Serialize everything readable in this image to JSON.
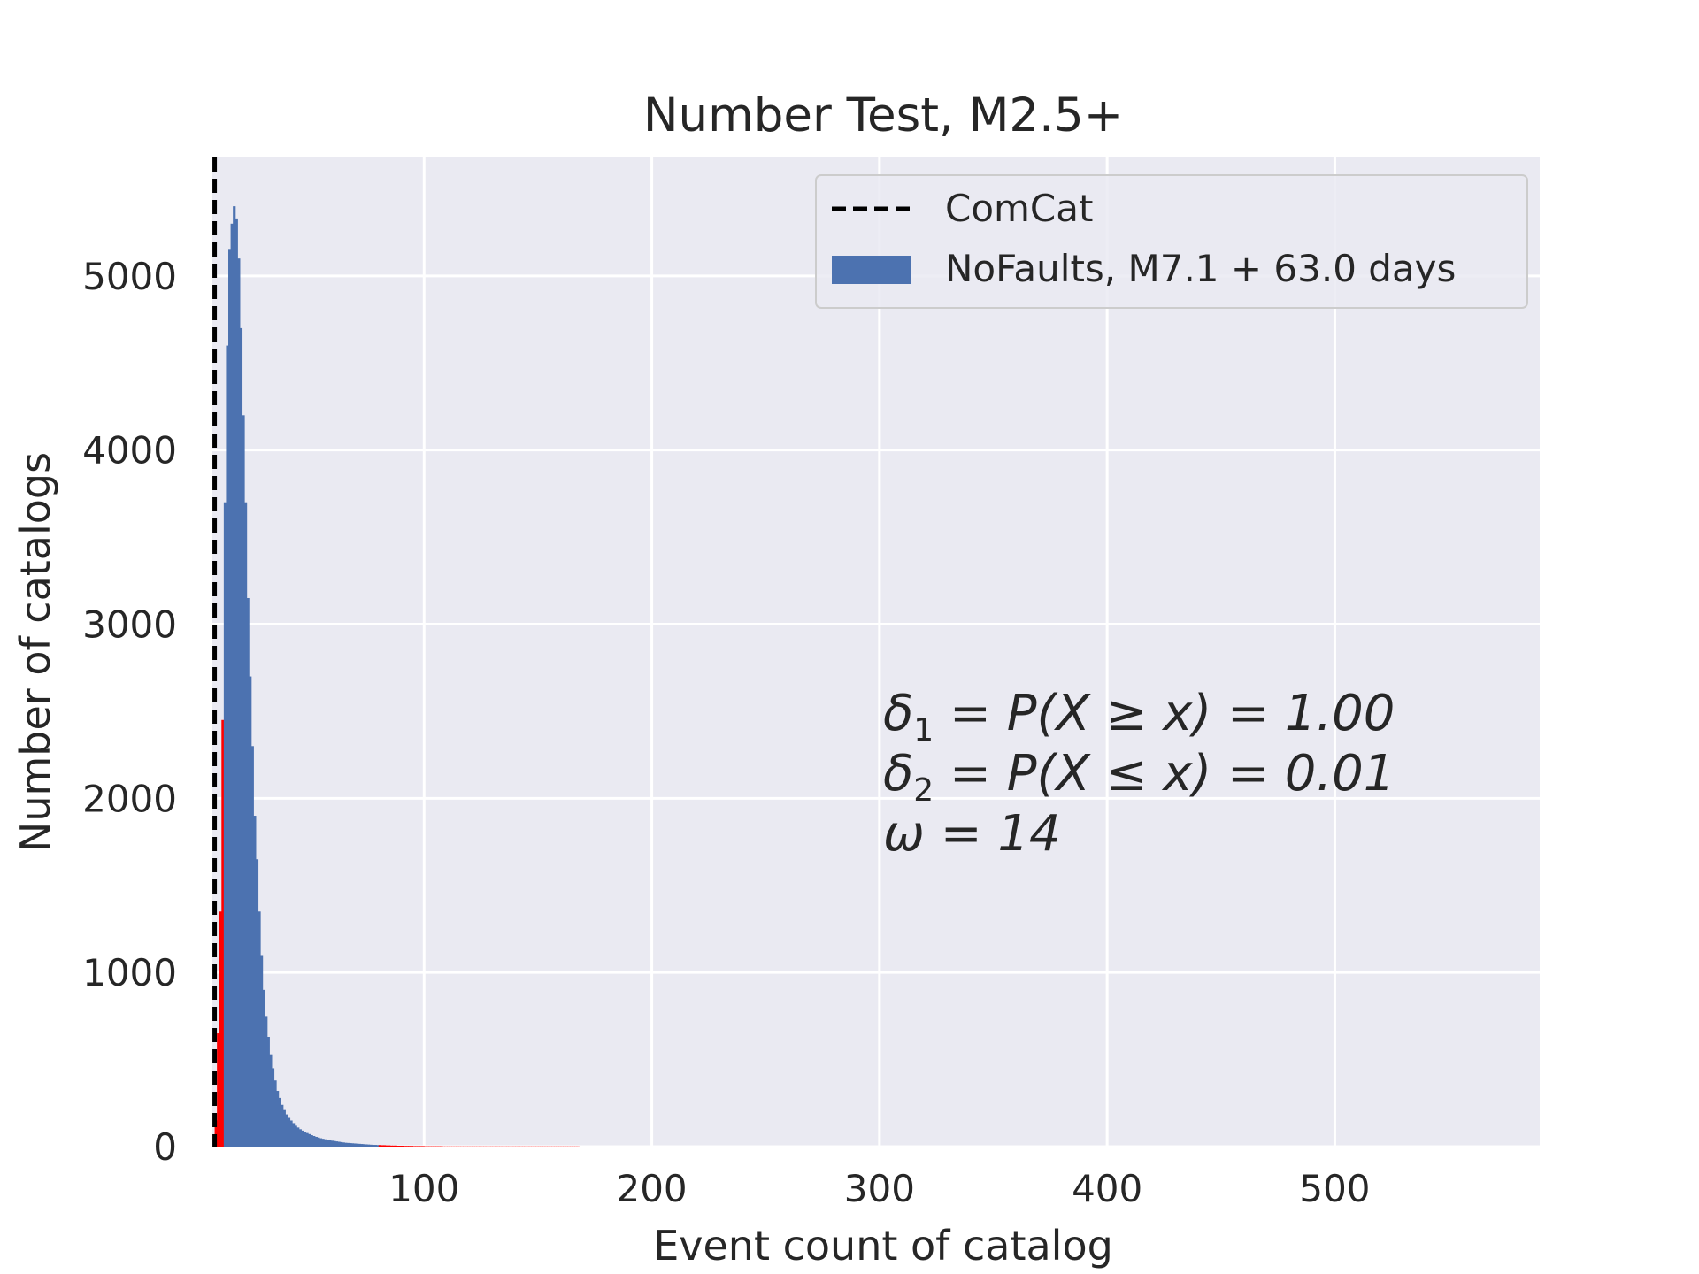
{
  "chart_data": {
    "type": "bar",
    "title": "Number Test, M2.5+",
    "xlabel": "Event count of catalog",
    "ylabel": "Number of catalogs",
    "xlim": [
      7,
      590
    ],
    "ylim": [
      0,
      5680
    ],
    "x_ticks": [
      {
        "value": 100,
        "label": "100"
      },
      {
        "value": 200,
        "label": "200"
      },
      {
        "value": 300,
        "label": "300"
      },
      {
        "value": 400,
        "label": "400"
      },
      {
        "value": 500,
        "label": "500"
      }
    ],
    "y_ticks": [
      {
        "value": 0,
        "label": "0"
      },
      {
        "value": 1000,
        "label": "1000"
      },
      {
        "value": 2000,
        "label": "2000"
      },
      {
        "value": 3000,
        "label": "3000"
      },
      {
        "value": 4000,
        "label": "4000"
      },
      {
        "value": 5000,
        "label": "5000"
      }
    ],
    "grid": true,
    "legend_position": "top-right",
    "legend": [
      {
        "label": "ComCat",
        "kind": "dashed-line",
        "color": "#000000"
      },
      {
        "label": "NoFaults, M7.1 + 63.0 days",
        "kind": "patch",
        "color": "#4C72B0"
      }
    ],
    "observed_value": 8,
    "histogram": {
      "bin_start": 8,
      "bin_width": 1,
      "counts": [
        150,
        650,
        1350,
        2450,
        3700,
        4600,
        5150,
        5300,
        5400,
        5330,
        5100,
        4700,
        4200,
        3700,
        3150,
        2700,
        2300,
        1900,
        1650,
        1350,
        1100,
        900,
        750,
        630,
        530,
        450,
        380,
        320,
        280,
        240,
        210,
        185,
        165,
        150,
        135,
        120,
        110,
        100,
        92,
        85,
        78,
        72,
        66,
        61,
        56,
        52,
        48,
        45,
        42,
        39,
        36,
        34,
        32,
        30,
        28,
        26,
        24,
        22,
        21,
        20,
        19,
        18,
        17,
        16,
        15,
        14,
        13,
        12,
        11,
        10,
        10,
        9,
        9,
        8,
        8,
        7,
        7,
        6,
        6,
        6,
        5,
        5,
        5,
        4,
        4,
        4,
        4,
        3,
        3,
        3,
        3,
        3,
        2,
        2,
        2,
        2,
        2,
        2,
        2,
        2,
        1,
        1,
        1,
        1,
        1,
        1,
        1,
        1,
        1,
        1,
        1,
        1,
        1,
        1,
        1,
        1,
        1,
        1,
        1,
        1,
        1,
        1,
        1,
        1,
        1,
        1,
        1,
        1,
        1,
        1,
        1,
        1,
        1,
        1,
        1,
        1,
        1,
        1,
        1,
        1,
        1,
        1,
        1,
        1,
        1,
        1,
        1,
        1,
        1,
        1,
        1,
        1,
        1,
        1,
        1,
        1,
        1,
        1,
        1,
        1
      ],
      "critical_low_max": 12,
      "critical_high_min": 80,
      "bar_color": "#4C72B0",
      "critical_color": "#FF0000"
    },
    "annotations": {
      "delta1": {
        "symbol": "δ",
        "subscript": "1",
        "expr": " = P(X ≥ x) = 1.00"
      },
      "delta2": {
        "symbol": "δ",
        "subscript": "2",
        "expr": " = P(X ≤ x) = 0.01"
      },
      "omega": {
        "text": "ω = 14"
      }
    },
    "colors": {
      "plot_background": "#EAEAF2",
      "grid": "#FFFFFF",
      "legend_border": "#CCCCCC"
    }
  }
}
